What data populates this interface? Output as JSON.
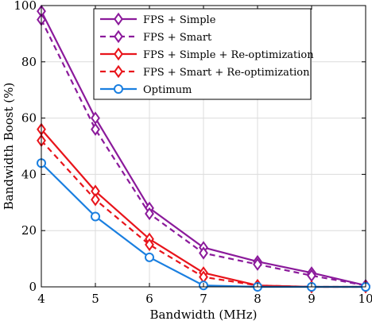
{
  "chart_data": {
    "type": "line",
    "title": "",
    "xlabel": "Bandwidth (MHz)",
    "ylabel": "Bandwidth Boost (%)",
    "xlim": [
      4,
      10
    ],
    "ylim": [
      0,
      100
    ],
    "xticks": [
      4,
      5,
      6,
      7,
      8,
      9,
      10
    ],
    "yticks": [
      0,
      20,
      40,
      60,
      80,
      100
    ],
    "grid": true,
    "legend_position": "top-right",
    "x": [
      4,
      5,
      6,
      7,
      8,
      9,
      10
    ],
    "series": [
      {
        "name": "FPS + Simple",
        "values": [
          98,
          60,
          28,
          14,
          9,
          5,
          0.5
        ],
        "color": "#8B1A9B",
        "dashed": false,
        "marker": "diamond"
      },
      {
        "name": "FPS + Smart",
        "values": [
          95,
          56,
          26,
          12,
          8,
          4,
          0.5
        ],
        "color": "#8B1A9B",
        "dashed": true,
        "marker": "diamond"
      },
      {
        "name": "FPS + Simple + Re-optimization",
        "values": [
          56,
          34,
          17,
          5,
          0.5,
          0,
          0
        ],
        "color": "#E8141B",
        "dashed": false,
        "marker": "diamond"
      },
      {
        "name": "FPS + Smart + Re-optimization",
        "values": [
          52,
          31,
          15,
          3.5,
          0.5,
          0,
          0
        ],
        "color": "#E8141B",
        "dashed": true,
        "marker": "diamond"
      },
      {
        "name": "Optimum",
        "values": [
          44,
          25,
          10.5,
          0.5,
          0,
          0,
          0
        ],
        "color": "#1A7FE0",
        "dashed": false,
        "marker": "circle"
      }
    ]
  }
}
